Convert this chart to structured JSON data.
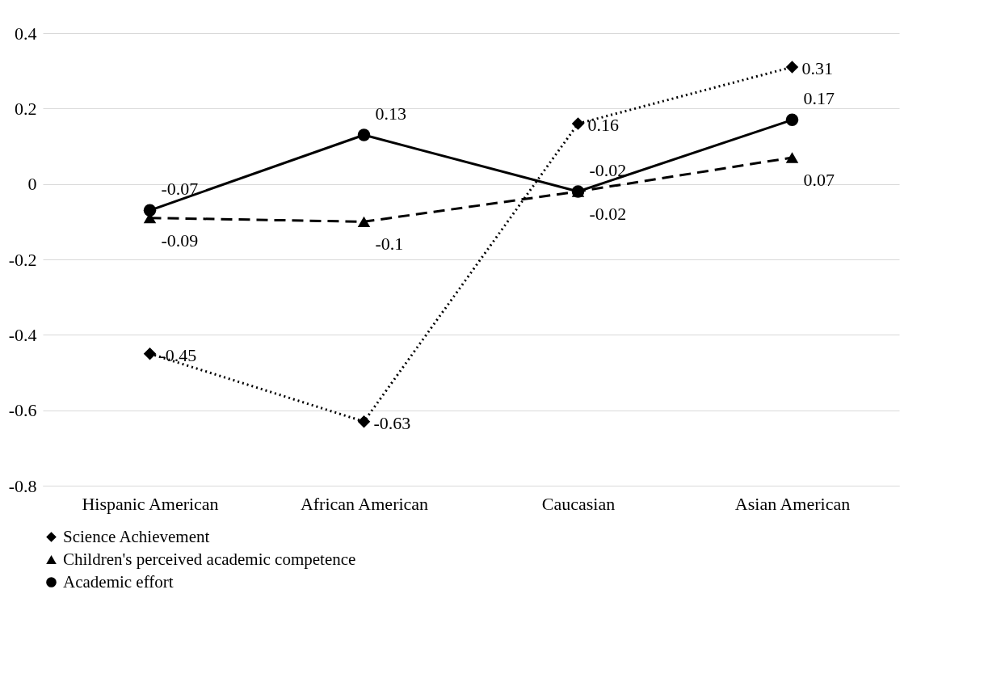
{
  "chart_data": {
    "type": "line",
    "categories": [
      "Hispanic American",
      "African American",
      "Caucasian",
      "Asian American"
    ],
    "series": [
      {
        "name": "Science Achievement",
        "color": "#000000",
        "marker": "diamond",
        "line_style": "dotted",
        "values": [
          -0.45,
          -0.63,
          0.16,
          0.31
        ]
      },
      {
        "name": "Children's perceived academic competence",
        "color": "#000000",
        "marker": "triangle",
        "line_style": "dashed",
        "values": [
          -0.09,
          -0.1,
          -0.02,
          0.07
        ]
      },
      {
        "name": "Academic effort",
        "color": "#000000",
        "marker": "circle",
        "line_style": "solid",
        "values": [
          -0.07,
          0.13,
          -0.02,
          0.17
        ]
      }
    ],
    "ylim": [
      -0.8,
      0.4
    ],
    "yticks": [
      -0.8,
      -0.6,
      -0.4,
      -0.2,
      0,
      0.2,
      0.4
    ],
    "grid": "y",
    "legend": "bottom",
    "data_labels": true
  }
}
